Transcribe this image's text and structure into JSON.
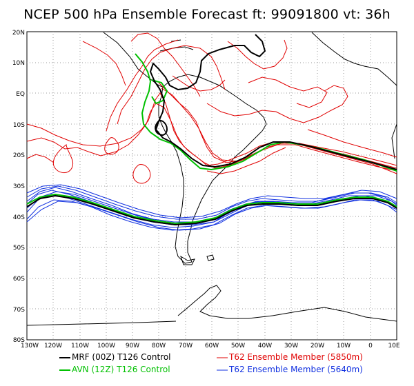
{
  "title": "NCEP 500 hPa Ensemble Forecast   ft: 99091800  vt: 36h",
  "latitude_labels": [
    "20N",
    "10N",
    "EQ",
    "10S",
    "20S",
    "30S",
    "40S",
    "50S",
    "60S",
    "70S",
    "80S"
  ],
  "longitude_labels": [
    "130W",
    "120W",
    "110W",
    "100W",
    "90W",
    "80W",
    "70W",
    "60W",
    "50W",
    "40W",
    "30W",
    "20W",
    "10W",
    "0",
    "10E"
  ],
  "legend": [
    {
      "label": "MRF (00Z) T126 Control",
      "color": "#000000"
    },
    {
      "label": "AVN (12Z) T126 Control",
      "color": "#00c000"
    },
    {
      "label": "T62 Ensemble Member (5850m)",
      "color": "#e00000"
    },
    {
      "label": "T62 Ensemble Member (5640m)",
      "color": "#1030e0"
    }
  ],
  "colors": {
    "mrf": "#000000",
    "avn": "#00c000",
    "ens5850": "#e00000",
    "ens5640": "#1030e0",
    "grid": "#9a9a9a",
    "coast": "#000000"
  }
}
